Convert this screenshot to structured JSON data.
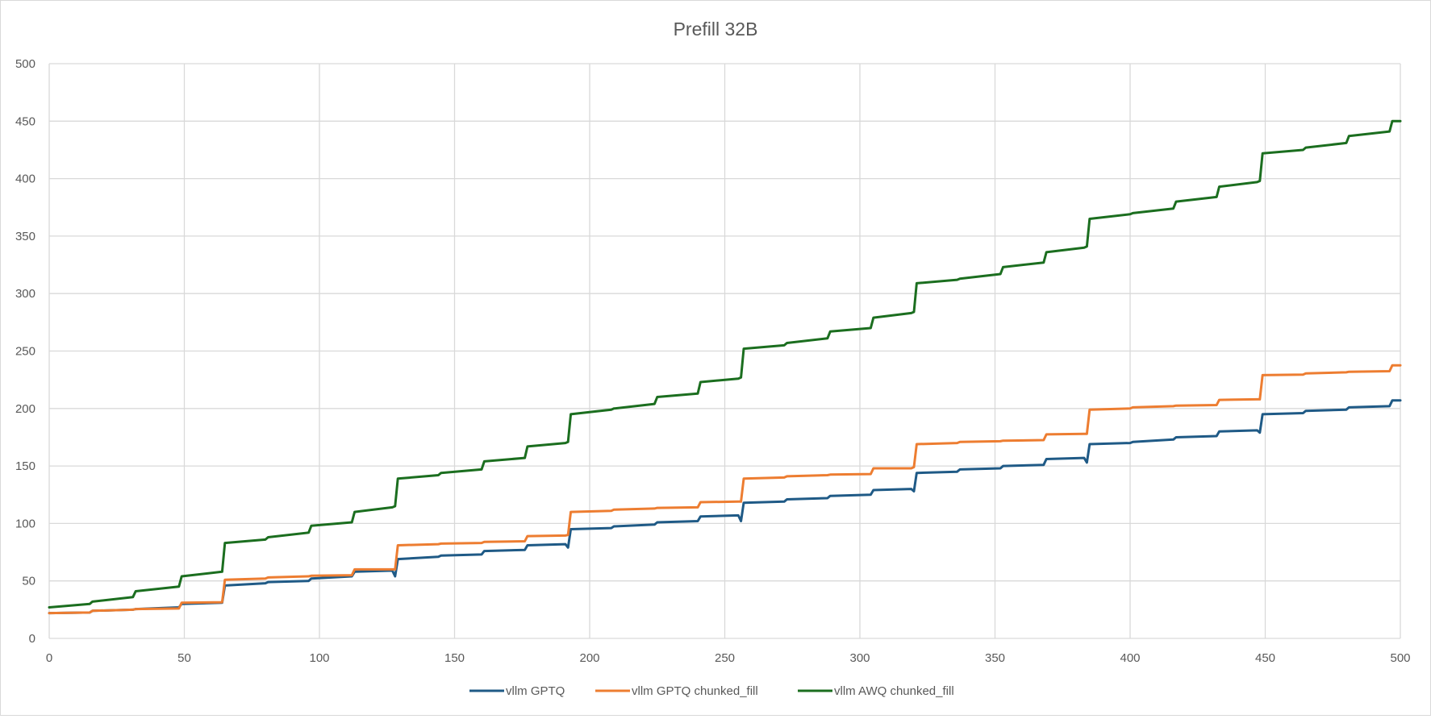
{
  "chart_data": {
    "type": "line",
    "title": "Prefill 32B",
    "xlabel": "",
    "ylabel": "",
    "xlim": [
      0,
      500
    ],
    "ylim": [
      0,
      500
    ],
    "x_ticks": [
      "0",
      "50",
      "100",
      "150",
      "200",
      "250",
      "300",
      "350",
      "400",
      "450",
      "500"
    ],
    "y_ticks": [
      "0",
      "50",
      "100",
      "150",
      "200",
      "250",
      "300",
      "350",
      "400",
      "450",
      "500"
    ],
    "grid": true,
    "legend_position": "bottom",
    "series": [
      {
        "name": "vllm GPTQ",
        "color": "#1f5a86",
        "points": [
          [
            0,
            22
          ],
          [
            15,
            22.5
          ],
          [
            16,
            24
          ],
          [
            31,
            25
          ],
          [
            32,
            25.5
          ],
          [
            48,
            27
          ],
          [
            49,
            30
          ],
          [
            64,
            31
          ],
          [
            65,
            46
          ],
          [
            80,
            48
          ],
          [
            81,
            49
          ],
          [
            96,
            50
          ],
          [
            97,
            52
          ],
          [
            112,
            54
          ],
          [
            113,
            58
          ],
          [
            127,
            59
          ],
          [
            128,
            54
          ],
          [
            129,
            69
          ],
          [
            144,
            71
          ],
          [
            145,
            72
          ],
          [
            160,
            73
          ],
          [
            161,
            76
          ],
          [
            176,
            77
          ],
          [
            177,
            81
          ],
          [
            191,
            82
          ],
          [
            192,
            79
          ],
          [
            193,
            95
          ],
          [
            208,
            96
          ],
          [
            209,
            97.5
          ],
          [
            224,
            99
          ],
          [
            225,
            101
          ],
          [
            240,
            102
          ],
          [
            241,
            106
          ],
          [
            255,
            107
          ],
          [
            256,
            102
          ],
          [
            257,
            118
          ],
          [
            272,
            119
          ],
          [
            273,
            121
          ],
          [
            288,
            122
          ],
          [
            289,
            124
          ],
          [
            304,
            125
          ],
          [
            305,
            129
          ],
          [
            319,
            130
          ],
          [
            320,
            128
          ],
          [
            321,
            144
          ],
          [
            336,
            145
          ],
          [
            337,
            147
          ],
          [
            352,
            148
          ],
          [
            353,
            150
          ],
          [
            368,
            151
          ],
          [
            369,
            156
          ],
          [
            383,
            157
          ],
          [
            384,
            153
          ],
          [
            385,
            169
          ],
          [
            400,
            170
          ],
          [
            401,
            171
          ],
          [
            416,
            173
          ],
          [
            417,
            175
          ],
          [
            432,
            176
          ],
          [
            433,
            180
          ],
          [
            447,
            181
          ],
          [
            448,
            179
          ],
          [
            449,
            195
          ],
          [
            464,
            196
          ],
          [
            465,
            198
          ],
          [
            480,
            199
          ],
          [
            481,
            201
          ],
          [
            496,
            202
          ],
          [
            497,
            207
          ],
          [
            500,
            207
          ]
        ]
      },
      {
        "name": "vllm GPTQ chunked_fill",
        "color": "#ed7d31",
        "points": [
          [
            0,
            22
          ],
          [
            15,
            22.5
          ],
          [
            16,
            24
          ],
          [
            31,
            25
          ],
          [
            32,
            25.5
          ],
          [
            48,
            26
          ],
          [
            49,
            31
          ],
          [
            64,
            31.5
          ],
          [
            65,
            51
          ],
          [
            80,
            52
          ],
          [
            81,
            53
          ],
          [
            96,
            54
          ],
          [
            97,
            54.5
          ],
          [
            112,
            55
          ],
          [
            113,
            60
          ],
          [
            127,
            60
          ],
          [
            128,
            60
          ],
          [
            129,
            81
          ],
          [
            144,
            82
          ],
          [
            145,
            82.5
          ],
          [
            160,
            83
          ],
          [
            161,
            84
          ],
          [
            176,
            84.5
          ],
          [
            177,
            89
          ],
          [
            191,
            89.5
          ],
          [
            192,
            90
          ],
          [
            193,
            110
          ],
          [
            208,
            111
          ],
          [
            209,
            112
          ],
          [
            224,
            113
          ],
          [
            225,
            113.5
          ],
          [
            240,
            114
          ],
          [
            241,
            118.5
          ],
          [
            255,
            119
          ],
          [
            256,
            119
          ],
          [
            257,
            139
          ],
          [
            272,
            140
          ],
          [
            273,
            141
          ],
          [
            288,
            142
          ],
          [
            289,
            142.5
          ],
          [
            304,
            143
          ],
          [
            305,
            148
          ],
          [
            319,
            148
          ],
          [
            320,
            149
          ],
          [
            321,
            169
          ],
          [
            336,
            170
          ],
          [
            337,
            171
          ],
          [
            352,
            171.5
          ],
          [
            353,
            172
          ],
          [
            368,
            172.5
          ],
          [
            369,
            177.5
          ],
          [
            383,
            178
          ],
          [
            384,
            178
          ],
          [
            385,
            199
          ],
          [
            400,
            200
          ],
          [
            401,
            201
          ],
          [
            416,
            202
          ],
          [
            417,
            202.5
          ],
          [
            432,
            203
          ],
          [
            433,
            207.5
          ],
          [
            447,
            208
          ],
          [
            448,
            208
          ],
          [
            449,
            229
          ],
          [
            464,
            229.5
          ],
          [
            465,
            230.5
          ],
          [
            480,
            231.5
          ],
          [
            481,
            232
          ],
          [
            496,
            232.5
          ],
          [
            497,
            237.5
          ],
          [
            500,
            237.5
          ]
        ]
      },
      {
        "name": "vllm AWQ chunked_fill",
        "color": "#1b6e1f",
        "points": [
          [
            0,
            27
          ],
          [
            15,
            30
          ],
          [
            16,
            32
          ],
          [
            31,
            36
          ],
          [
            32,
            41
          ],
          [
            48,
            45
          ],
          [
            49,
            54
          ],
          [
            64,
            58
          ],
          [
            65,
            83
          ],
          [
            80,
            86
          ],
          [
            81,
            88
          ],
          [
            96,
            92
          ],
          [
            97,
            98
          ],
          [
            112,
            101
          ],
          [
            113,
            110
          ],
          [
            127,
            114
          ],
          [
            128,
            115
          ],
          [
            129,
            139
          ],
          [
            144,
            142
          ],
          [
            145,
            144
          ],
          [
            160,
            147
          ],
          [
            161,
            154
          ],
          [
            176,
            157
          ],
          [
            177,
            167
          ],
          [
            191,
            170
          ],
          [
            192,
            171
          ],
          [
            193,
            195
          ],
          [
            208,
            199
          ],
          [
            209,
            200
          ],
          [
            224,
            204
          ],
          [
            225,
            210
          ],
          [
            240,
            213
          ],
          [
            241,
            223
          ],
          [
            255,
            226
          ],
          [
            256,
            227
          ],
          [
            257,
            252
          ],
          [
            272,
            255
          ],
          [
            273,
            257
          ],
          [
            288,
            261
          ],
          [
            289,
            267
          ],
          [
            304,
            270
          ],
          [
            305,
            279
          ],
          [
            319,
            283
          ],
          [
            320,
            284
          ],
          [
            321,
            309
          ],
          [
            336,
            312
          ],
          [
            337,
            313
          ],
          [
            352,
            317
          ],
          [
            353,
            323
          ],
          [
            368,
            327
          ],
          [
            369,
            336
          ],
          [
            383,
            340
          ],
          [
            384,
            341
          ],
          [
            385,
            365
          ],
          [
            400,
            369
          ],
          [
            401,
            370
          ],
          [
            416,
            374
          ],
          [
            417,
            380
          ],
          [
            432,
            384
          ],
          [
            433,
            393
          ],
          [
            447,
            397
          ],
          [
            448,
            398
          ],
          [
            449,
            422
          ],
          [
            464,
            425
          ],
          [
            465,
            427
          ],
          [
            480,
            431
          ],
          [
            481,
            437
          ],
          [
            496,
            441
          ],
          [
            497,
            450
          ],
          [
            500,
            450
          ]
        ]
      }
    ]
  }
}
